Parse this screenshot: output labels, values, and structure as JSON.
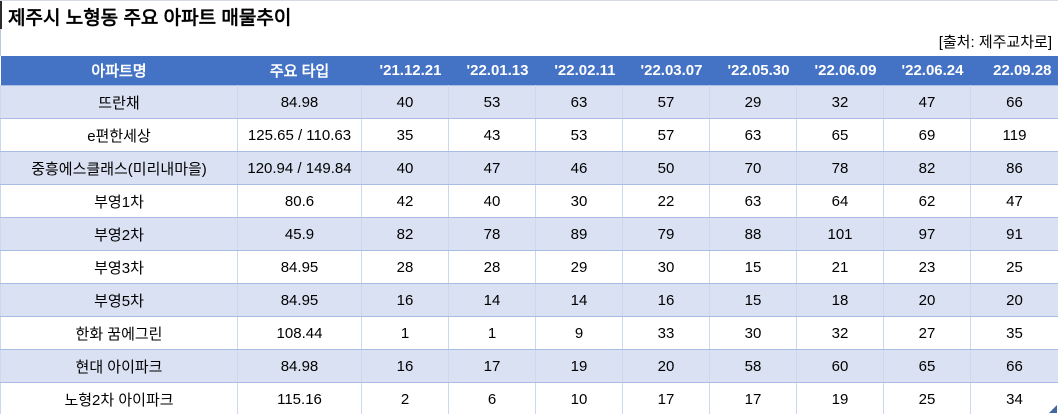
{
  "title": "제주시 노형동 주요 아파트 매물추이",
  "source_note": "[출처: 제주교차로]",
  "colors": {
    "header_bg": "#4472C4",
    "header_text": "#FFFFFF",
    "band_row_bg": "#D9E1F2",
    "row_border": "#A9BCE2",
    "column_border": "#CCD8EE",
    "top_line": "#D5DAE3",
    "selection_handle": "#44679D"
  },
  "table": {
    "columns": [
      {
        "key": "name",
        "label": "아파트명"
      },
      {
        "key": "type",
        "label": "주요 타입"
      },
      {
        "key": "d1",
        "label": "'21.12.21"
      },
      {
        "key": "d2",
        "label": "'22.01.13"
      },
      {
        "key": "d3",
        "label": "'22.02.11"
      },
      {
        "key": "d4",
        "label": "'22.03.07"
      },
      {
        "key": "d5",
        "label": "'22.05.30"
      },
      {
        "key": "d6",
        "label": "'22.06.09"
      },
      {
        "key": "d7",
        "label": "'22.06.24"
      },
      {
        "key": "d8",
        "label": "22.09.28"
      }
    ],
    "rows": [
      {
        "name": "뜨란채",
        "type": "84.98",
        "values": [
          40,
          53,
          63,
          57,
          29,
          32,
          47,
          66
        ]
      },
      {
        "name": "e편한세상",
        "type": "125.65 / 110.63",
        "values": [
          35,
          43,
          53,
          57,
          63,
          65,
          69,
          119
        ]
      },
      {
        "name": "중흥에스클래스(미리내마을)",
        "type": "120.94 / 149.84",
        "values": [
          40,
          47,
          46,
          50,
          70,
          78,
          82,
          86
        ]
      },
      {
        "name": "부영1차",
        "type": "80.6",
        "values": [
          42,
          40,
          30,
          22,
          63,
          64,
          62,
          47
        ]
      },
      {
        "name": "부영2차",
        "type": "45.9",
        "values": [
          82,
          78,
          89,
          79,
          88,
          101,
          97,
          91
        ]
      },
      {
        "name": "부영3차",
        "type": "84.95",
        "values": [
          28,
          28,
          29,
          30,
          15,
          21,
          23,
          25
        ]
      },
      {
        "name": "부영5차",
        "type": "84.95",
        "values": [
          16,
          14,
          14,
          16,
          15,
          18,
          20,
          20
        ]
      },
      {
        "name": "한화 꿈에그린",
        "type": "108.44",
        "values": [
          1,
          1,
          9,
          33,
          30,
          32,
          27,
          35
        ]
      },
      {
        "name": "현대 아이파크",
        "type": "84.98",
        "values": [
          16,
          17,
          19,
          20,
          58,
          60,
          65,
          66
        ]
      },
      {
        "name": "노형2차 아이파크",
        "type": "115.16",
        "values": [
          2,
          6,
          10,
          17,
          17,
          19,
          25,
          34
        ]
      }
    ]
  }
}
